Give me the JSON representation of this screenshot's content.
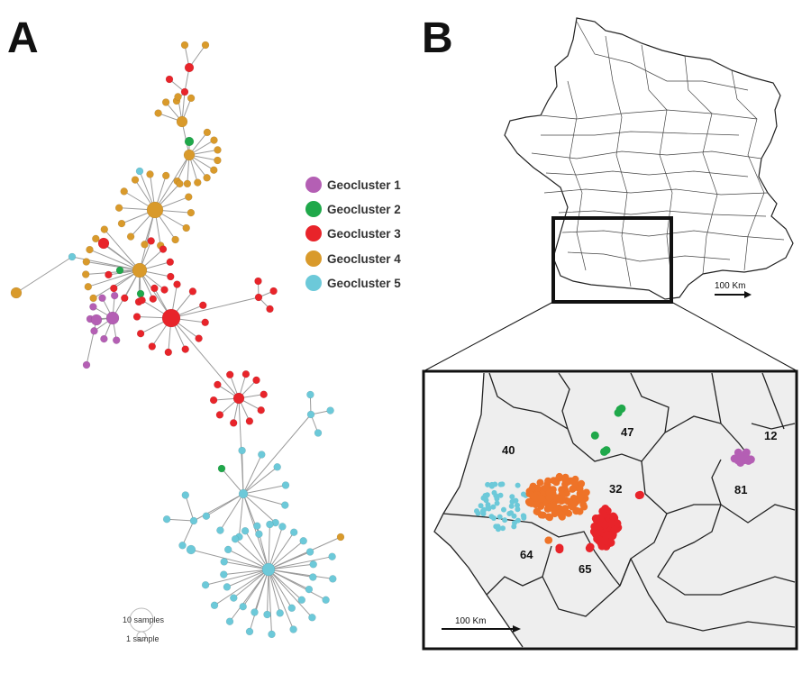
{
  "panels": {
    "a": "A",
    "b": "B"
  },
  "colors": {
    "geocluster_1": "#b45fb4",
    "geocluster_2": "#1fa84a",
    "geocluster_3": "#e8242a",
    "geocluster_4": "#d99a2b",
    "geocluster_5": "#6cc9d9",
    "orange_zone": "#ee7328"
  },
  "legend": [
    {
      "label": "Geocluster 1",
      "color_key": "geocluster_1"
    },
    {
      "label": "Geocluster 2",
      "color_key": "geocluster_2"
    },
    {
      "label": "Geocluster 3",
      "color_key": "geocluster_3"
    },
    {
      "label": "Geocluster 4",
      "color_key": "geocluster_4"
    },
    {
      "label": "Geocluster 5",
      "color_key": "geocluster_5"
    }
  ],
  "size_legend": {
    "large": "10 samples",
    "small": "1 sample"
  },
  "map": {
    "scale_france": "100 Km",
    "scale_inset": "100 Km",
    "departments": [
      "40",
      "47",
      "12",
      "32",
      "81",
      "64",
      "65"
    ]
  }
}
